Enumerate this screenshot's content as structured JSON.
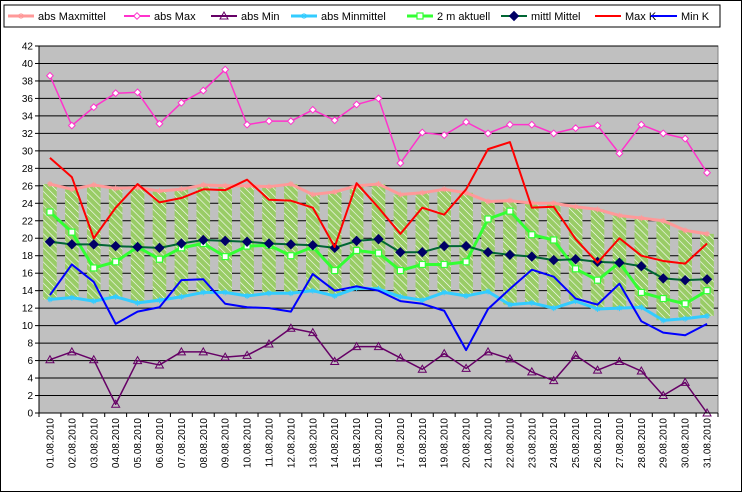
{
  "chart_data": {
    "type": "line",
    "categories": [
      "01.08.2010",
      "02.08.2010",
      "03.08.2010",
      "04.08.2010",
      "05.08.2010",
      "06.08.2010",
      "07.08.2010",
      "08.08.2010",
      "09.08.2010",
      "10.08.2010",
      "11.08.2010",
      "12.08.2010",
      "13.08.2010",
      "14.08.2010",
      "15.08.2010",
      "16.08.2010",
      "17.08.2010",
      "18.08.2010",
      "19.08.2010",
      "20.08.2010",
      "21.08.2010",
      "22.08.2010",
      "23.08.2010",
      "24.08.2010",
      "25.08.2010",
      "26.08.2010",
      "27.08.2010",
      "28.08.2010",
      "29.08.2010",
      "30.08.2010",
      "31.08.2010"
    ],
    "ylim": [
      0,
      42
    ],
    "yticks": [
      0,
      2,
      4,
      6,
      8,
      10,
      12,
      14,
      16,
      18,
      20,
      22,
      24,
      26,
      28,
      30,
      32,
      34,
      36,
      38,
      40,
      42
    ],
    "grid": true,
    "legend_position": "top",
    "band": {
      "upper": "abs Maxmittel",
      "lower": "abs Minmittel",
      "fill_color": "#99cc66"
    },
    "series": [
      {
        "name": "abs Maxmittel",
        "color": "#ff9999",
        "marker": "asterisk",
        "values": [
          26.2,
          25.6,
          26.1,
          25.7,
          25.8,
          25.4,
          25.6,
          26.1,
          26.0,
          26.0,
          25.9,
          26.2,
          25.0,
          25.3,
          26.0,
          26.2,
          25.0,
          25.2,
          25.6,
          25.2,
          24.2,
          24.3,
          24.0,
          24.0,
          23.6,
          23.3,
          22.6,
          22.3,
          22.0,
          20.9,
          20.5
        ]
      },
      {
        "name": "abs Max",
        "color": "#ff33cc",
        "marker": "diamond-open",
        "values": [
          38.6,
          32.9,
          35.0,
          36.6,
          36.7,
          33.1,
          35.5,
          36.9,
          39.3,
          33.0,
          33.4,
          33.4,
          34.7,
          33.5,
          35.3,
          36.0,
          28.6,
          32.1,
          31.8,
          33.3,
          32.0,
          33.0,
          33.0,
          32.0,
          32.6,
          32.9,
          29.7,
          33.0,
          32.0,
          31.4,
          27.5
        ]
      },
      {
        "name": "abs Min",
        "color": "#660066",
        "marker": "triangle-open",
        "values": [
          6.1,
          7.0,
          6.1,
          1.0,
          6.0,
          5.5,
          7.0,
          7.0,
          6.4,
          6.6,
          7.9,
          9.7,
          9.2,
          5.9,
          7.6,
          7.6,
          6.3,
          5.0,
          6.8,
          5.1,
          7.0,
          6.2,
          4.7,
          3.7,
          6.6,
          4.9,
          5.9,
          4.8,
          2.0,
          3.5,
          0.0
        ]
      },
      {
        "name": "abs Minmittel",
        "color": "#33ccff",
        "marker": "asterisk",
        "values": [
          13.0,
          13.2,
          12.8,
          13.3,
          12.6,
          12.9,
          13.3,
          13.8,
          13.8,
          13.4,
          13.7,
          13.7,
          14.0,
          13.4,
          14.3,
          14.2,
          13.3,
          12.9,
          13.8,
          13.4,
          13.9,
          12.4,
          12.6,
          12.0,
          12.8,
          11.9,
          12.0,
          12.1,
          10.6,
          10.8,
          11.1
        ]
      },
      {
        "name": "2 m aktuell",
        "color": "#33ff33",
        "marker": "square-open",
        "values": [
          23.0,
          20.7,
          16.6,
          17.3,
          19.0,
          17.6,
          18.9,
          19.4,
          17.9,
          19.1,
          19.2,
          18.0,
          19.0,
          16.3,
          18.6,
          18.3,
          16.3,
          17.0,
          17.0,
          17.3,
          22.2,
          23.1,
          20.4,
          19.8,
          16.5,
          15.2,
          17.2,
          13.8,
          13.1,
          12.5,
          14.0
        ]
      },
      {
        "name": "mittl Mittel",
        "color": "#006633",
        "marker": "diamond-filled",
        "values": [
          19.6,
          19.3,
          19.3,
          19.1,
          19.0,
          18.9,
          19.4,
          19.8,
          19.7,
          19.6,
          19.4,
          19.3,
          19.2,
          18.9,
          19.7,
          19.9,
          18.4,
          18.4,
          19.1,
          19.1,
          18.4,
          18.1,
          17.9,
          17.5,
          17.6,
          17.3,
          17.2,
          16.8,
          15.4,
          15.2,
          15.3
        ]
      },
      {
        "name": "Max K",
        "color": "#ff0000",
        "marker": "none",
        "values": [
          29.2,
          27.0,
          20.0,
          23.5,
          26.2,
          24.1,
          24.6,
          25.6,
          25.5,
          26.7,
          24.4,
          24.3,
          23.5,
          19.0,
          26.3,
          23.5,
          20.5,
          23.5,
          22.7,
          25.6,
          30.2,
          31.0,
          23.5,
          23.6,
          19.9,
          17.2,
          20.0,
          18.0,
          17.4,
          17.1,
          19.4
        ]
      },
      {
        "name": "Min K",
        "color": "#0000ff",
        "marker": "none",
        "values": [
          13.5,
          17.0,
          15.0,
          10.2,
          11.6,
          12.1,
          15.2,
          15.3,
          12.5,
          12.1,
          12.0,
          11.6,
          15.9,
          14.0,
          14.5,
          14.0,
          12.8,
          12.5,
          11.7,
          7.2,
          11.9,
          14.2,
          16.4,
          15.6,
          13.1,
          12.4,
          14.8,
          10.5,
          9.2,
          8.9,
          10.2
        ]
      }
    ]
  }
}
